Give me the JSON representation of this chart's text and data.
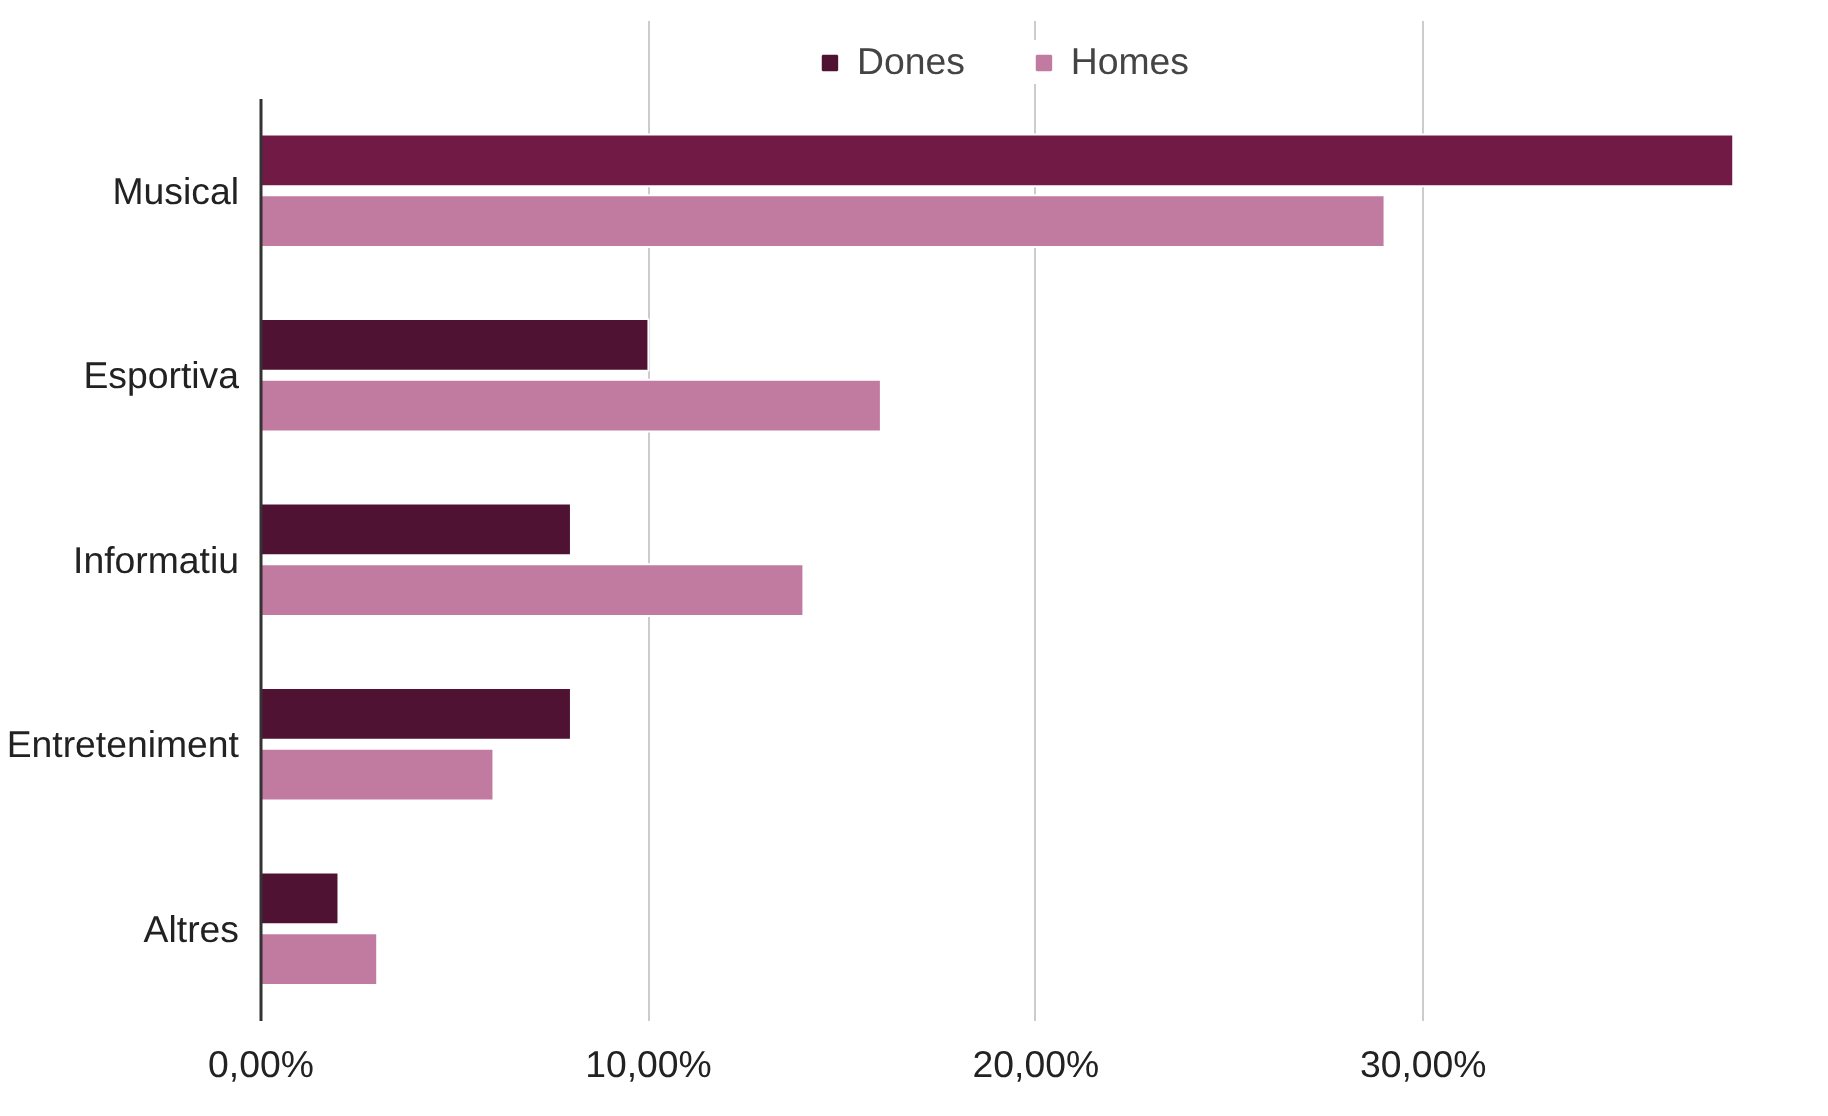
{
  "chart_data": {
    "type": "bar",
    "orientation": "horizontal",
    "categories": [
      "Musical",
      "Esportiva",
      "Informatiu",
      "Entreteniment",
      "Altres"
    ],
    "series": [
      {
        "name": "Dones",
        "color": "#4f1232",
        "colors": [
          "#721a46",
          "#4f1232",
          "#4f1232",
          "#4f1232",
          "#4f1232"
        ],
        "values": [
          38,
          10,
          8,
          8,
          2
        ]
      },
      {
        "name": "Homes",
        "color": "#c27ba0",
        "values": [
          29,
          16,
          14,
          6,
          3
        ]
      }
    ],
    "xlim": [
      0,
      38.2
    ],
    "xticks": [
      {
        "value": 0,
        "label": "0,00%"
      },
      {
        "value": 10,
        "label": "10,00%"
      },
      {
        "value": 20,
        "label": "20,00%"
      },
      {
        "value": 30,
        "label": "30,00%"
      }
    ],
    "grid": "x",
    "legend": "top"
  }
}
